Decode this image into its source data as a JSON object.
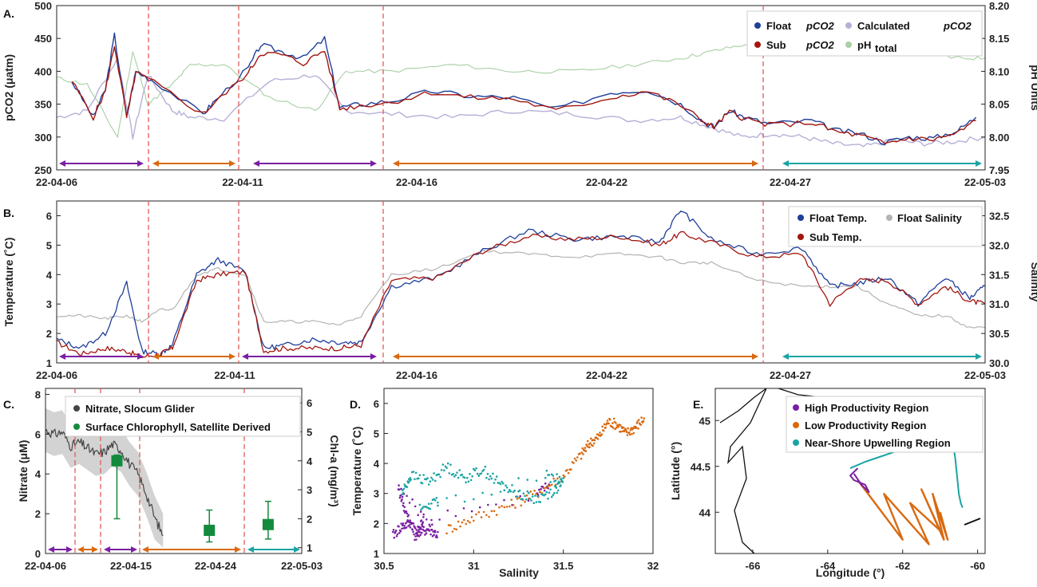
{
  "colors": {
    "float": "#1f3f99",
    "sub": "#a3160f",
    "calculated": "#b6b0d6",
    "ph": "#a9cfa5",
    "salinity": "#b3b3b3",
    "high": "#7a1fa2",
    "low": "#d9690f",
    "nearshore": "#1aa3a3",
    "nitrate": "#444444",
    "chl": "#138a3c",
    "divider": "#e05a5a"
  },
  "chart_data": [
    {
      "panel": "A.",
      "type": "line",
      "ylabel": "pCO2 (μatm)",
      "y2label": "pH Units",
      "ylim": [
        250,
        500
      ],
      "y2lim": [
        7.95,
        8.2
      ],
      "yticks": [
        "250",
        "300",
        "350",
        "400",
        "450",
        "500"
      ],
      "y2ticks": [
        "7.95",
        "8.00",
        "8.05",
        "8.10",
        "8.15",
        "8.20"
      ],
      "xticks": [
        "22-04-06",
        "22-04-11",
        "22-04-16",
        "22-04-22",
        "22-04-27",
        "22-05-03"
      ],
      "legend": {
        "float": "Float",
        "sub": "Sub",
        "pco2": "pCO",
        "pco2_sub": "2",
        "calc": "Calculated",
        "ph": "pH",
        "ph_sub": "total"
      },
      "series": [
        {
          "name": "Float pCO2",
          "x": [
            0.5,
            1.2,
            1.6,
            1.9,
            2.3,
            2.6,
            3.2,
            4.8,
            5.2,
            6.3,
            6.7,
            7.4,
            8.1,
            8.8,
            9.3,
            10.0,
            11.0,
            12.3,
            13.6,
            15.0,
            16.4,
            18.2,
            19.4,
            20.5,
            21.3,
            21.6,
            22.1,
            22.6,
            23.4,
            24.8,
            25.6,
            26.4,
            27.2,
            28.0,
            28.8,
            29.6,
            30.2
          ],
          "y": [
            385,
            330,
            372,
            455,
            330,
            400,
            385,
            335,
            355,
            405,
            440,
            430,
            420,
            450,
            345,
            350,
            355,
            370,
            362,
            360,
            342,
            368,
            372,
            350,
            322,
            315,
            340,
            330,
            320,
            325,
            310,
            305,
            292,
            300,
            298,
            310,
            330
          ]
        },
        {
          "name": "Sub pCO2",
          "x": [
            0.5,
            1.2,
            1.6,
            1.9,
            2.3,
            2.6,
            3.2,
            4.8,
            5.2,
            6.3,
            6.7,
            7.4,
            8.1,
            8.8,
            9.3,
            10.0,
            11.0,
            12.3,
            13.6,
            15.0,
            16.4,
            18.2,
            19.4,
            20.5,
            21.3,
            21.6,
            22.1,
            22.6,
            23.4,
            24.8,
            25.6,
            26.4,
            27.2,
            28.0,
            28.8,
            29.6,
            30.2
          ],
          "y": [
            385,
            330,
            370,
            440,
            330,
            398,
            383,
            335,
            352,
            398,
            428,
            425,
            412,
            432,
            343,
            348,
            353,
            368,
            360,
            358,
            340,
            360,
            370,
            348,
            322,
            315,
            338,
            328,
            318,
            322,
            308,
            302,
            290,
            298,
            296,
            306,
            325
          ]
        },
        {
          "name": "Calculated pCO2",
          "x": [
            0,
            1,
            2,
            2.5,
            3,
            3.8,
            4.4,
            5.5,
            7,
            8.5,
            9.5,
            11,
            13,
            15,
            17,
            19,
            20.5,
            21.5,
            22.5,
            23.5,
            24.5,
            25.5,
            26.5,
            27.5,
            28.5,
            29.5,
            30.5
          ],
          "y": [
            330,
            340,
            420,
            300,
            395,
            340,
            330,
            328,
            385,
            395,
            340,
            335,
            330,
            340,
            335,
            325,
            330,
            315,
            300,
            305,
            300,
            290,
            285,
            295,
            290,
            293,
            300
          ]
        },
        {
          "name": "pHtotal",
          "x": [
            0,
            1,
            2,
            2.5,
            3,
            3.8,
            4.4,
            5.5,
            7,
            8.5,
            9.5,
            11,
            13,
            15,
            17,
            19,
            20.5,
            21.5,
            22.5,
            23.5,
            24.5,
            25.5,
            26.5,
            27.5,
            28.5,
            29.5,
            30.5
          ],
          "y": [
            8.09,
            8.08,
            8.0,
            8.13,
            8.05,
            8.08,
            8.11,
            8.11,
            8.06,
            8.04,
            8.1,
            8.1,
            8.11,
            8.1,
            8.1,
            8.11,
            8.12,
            8.13,
            8.14,
            8.13,
            8.13,
            8.14,
            8.14,
            8.13,
            8.13,
            8.12,
            8.12
          ]
        }
      ]
    },
    {
      "panel": "B.",
      "type": "line",
      "ylabel": "Temperature (˚C)",
      "y2label": "Salinity",
      "ylim": [
        1,
        6.5
      ],
      "y2lim": [
        30,
        32.75
      ],
      "yticks": [
        "1",
        "2",
        "3",
        "4",
        "5",
        "6"
      ],
      "y2ticks": [
        "30.0",
        "30.5",
        "31.0",
        "31.5",
        "32.0",
        "32.5"
      ],
      "xticks": [
        "22-04-06",
        "22-04-11",
        "22-04-16",
        "22-04-22",
        "22-04-27",
        "22-05-03"
      ],
      "legend": {
        "float": "Float Temp.",
        "salinity": "Float Salinity",
        "sub": "Sub Temp."
      },
      "series": [
        {
          "name": "Float Temp.",
          "x": [
            0,
            0.8,
            1.6,
            2.3,
            2.8,
            3.4,
            3.8,
            4.6,
            5.3,
            6.2,
            6.8,
            7.5,
            8.4,
            9.3,
            10.0,
            11.0,
            12.5,
            14.0,
            15.5,
            17.0,
            18.5,
            19.8,
            20.5,
            21.5,
            23.0,
            24.5,
            25.4,
            26.3,
            27.3,
            28.3,
            29.2,
            30.0,
            30.5
          ],
          "y": [
            1.8,
            1.5,
            2.0,
            3.7,
            1.4,
            1.3,
            1.6,
            4.0,
            4.5,
            4.1,
            1.5,
            1.6,
            1.8,
            1.7,
            1.7,
            3.6,
            3.9,
            4.8,
            5.5,
            5.2,
            5.3,
            5.1,
            6.2,
            5.2,
            4.7,
            4.9,
            3.6,
            3.7,
            3.9,
            3.0,
            3.9,
            3.2,
            3.6
          ]
        },
        {
          "name": "Sub Temp.",
          "x": [
            0,
            0.8,
            1.6,
            2.3,
            2.8,
            3.4,
            3.8,
            4.6,
            5.3,
            6.2,
            6.8,
            7.5,
            8.4,
            9.3,
            10.0,
            11.0,
            12.5,
            14.0,
            15.5,
            17.0,
            18.5,
            19.8,
            20.5,
            21.5,
            23.0,
            24.5,
            25.4,
            26.3,
            27.3,
            28.3,
            29.2,
            30.0,
            30.5
          ],
          "y": [
            1.7,
            1.3,
            1.5,
            1.4,
            1.2,
            1.3,
            1.5,
            3.8,
            4.0,
            4.1,
            1.4,
            1.5,
            1.5,
            1.5,
            1.6,
            3.8,
            3.9,
            4.8,
            5.3,
            5.2,
            5.3,
            5.0,
            5.4,
            5.1,
            4.6,
            4.7,
            3.0,
            3.8,
            3.8,
            3.0,
            3.6,
            3.1,
            3.0
          ]
        },
        {
          "name": "Float Salinity",
          "x": [
            0,
            0.8,
            1.6,
            2.3,
            2.8,
            3.4,
            3.8,
            4.6,
            5.3,
            6.2,
            6.8,
            7.5,
            8.4,
            9.3,
            10.0,
            11.0,
            12.5,
            14.0,
            15.5,
            17.0,
            18.5,
            19.8,
            20.5,
            21.5,
            23.0,
            24.5,
            25.4,
            26.3,
            27.3,
            28.3,
            29.2,
            30.0,
            30.5
          ],
          "y": [
            30.8,
            30.8,
            30.75,
            30.8,
            30.7,
            30.9,
            30.9,
            31.5,
            31.6,
            31.5,
            30.7,
            30.7,
            30.7,
            30.65,
            30.8,
            31.5,
            31.6,
            31.9,
            31.85,
            31.8,
            31.85,
            31.8,
            31.7,
            31.7,
            31.4,
            31.3,
            31.3,
            31.3,
            31.0,
            30.8,
            30.8,
            30.6,
            30.6
          ]
        }
      ]
    },
    {
      "panel": "C.",
      "type": "line",
      "ylabel": "Nitrate (μM)",
      "y2label": "Chl-a (mg/m³)",
      "ylim": [
        0,
        8.3
      ],
      "y2lim": [
        0.8,
        6.5
      ],
      "yticks": [
        "0",
        "2",
        "4",
        "6",
        "8"
      ],
      "y2ticks": [
        "1",
        "2",
        "3",
        "4",
        "5",
        "6"
      ],
      "xticks": [
        "22-04-06",
        "22-04-15",
        "22-04-24",
        "22-05-03"
      ],
      "legend": {
        "nitrate": "Nitrate, Slocum Glider",
        "chl": "Surface Chlorophyll, Satellite Derived"
      },
      "series": [
        {
          "name": "Nitrate, Slocum Glider",
          "x": [
            0,
            1,
            2,
            3,
            4,
            5,
            6,
            7,
            8,
            9,
            10,
            11,
            12,
            13,
            14
          ],
          "y": [
            6.2,
            6.0,
            6.1,
            5.4,
            5.6,
            5.3,
            5.0,
            5.1,
            5.5,
            5.2,
            4.5,
            4.0,
            3.0,
            1.8,
            0.9
          ]
        },
        {
          "name": "Surface Chlorophyll, Satellite Derived",
          "x": [
            8.5,
            19.5,
            26.5
          ],
          "y": [
            4.0,
            1.6,
            1.8
          ],
          "err_low": [
            2.0,
            1.2,
            1.3
          ],
          "err_high": [
            4.2,
            2.3,
            2.6
          ]
        }
      ]
    },
    {
      "panel": "D.",
      "type": "scatter",
      "xlabel": "Salinity",
      "ylabel": "Temperature (˚C)",
      "xlim": [
        30.5,
        32
      ],
      "ylim": [
        1,
        6.5
      ],
      "xticks": [
        "30.5",
        "31",
        "31.5",
        "32"
      ],
      "yticks": [
        "1",
        "2",
        "3",
        "4",
        "5",
        "6"
      ],
      "series": [
        {
          "name": "High Productivity Region",
          "x": [
            30.55,
            30.6,
            30.65,
            30.7,
            30.75,
            30.8,
            30.58,
            30.62,
            30.68,
            30.72,
            31.35,
            31.42
          ],
          "y": [
            1.6,
            1.9,
            2.0,
            1.7,
            1.8,
            1.6,
            3.2,
            2.4,
            1.5,
            2.2,
            2.9,
            3.3
          ]
        },
        {
          "name": "Low Productivity Region",
          "x": [
            30.85,
            31.0,
            31.2,
            31.35,
            31.5,
            31.6,
            31.65,
            31.7,
            31.75,
            31.8,
            31.85,
            31.9,
            31.95
          ],
          "y": [
            1.8,
            2.2,
            2.6,
            3.0,
            3.6,
            4.3,
            4.7,
            4.9,
            5.4,
            5.3,
            5.0,
            5.2,
            5.5
          ]
        },
        {
          "name": "Near-Shore Upwelling Region",
          "x": [
            30.6,
            30.65,
            30.75,
            30.85,
            30.95,
            31.05,
            31.15,
            31.25,
            31.35,
            31.45,
            31.5,
            31.4,
            30.7,
            30.8
          ],
          "y": [
            3.0,
            3.6,
            3.4,
            3.9,
            3.5,
            3.8,
            3.3,
            3.0,
            2.8,
            3.1,
            3.4,
            3.6,
            2.5,
            2.7
          ]
        }
      ]
    },
    {
      "panel": "E.",
      "type": "line",
      "xlabel": "Longitude (°)",
      "ylabel": "Latitude (°)",
      "xlim": [
        -67,
        -59.8
      ],
      "ylim": [
        43.55,
        45.35
      ],
      "xticks": [
        "-66",
        "-64",
        "-62",
        "-60"
      ],
      "yticks": [
        "44",
        "44.5",
        "45"
      ],
      "legend": {
        "high": "High Productivity Region",
        "low": "Low Productivity Region",
        "near": "Near-Shore Upwelling Region"
      },
      "series": [
        {
          "name": "High Productivity Region",
          "x": [
            -63.2,
            -63.4,
            -63.3,
            -63.0,
            -62.9,
            -63.1,
            -63.3
          ],
          "y": [
            44.48,
            44.4,
            44.35,
            44.3,
            44.22,
            44.3,
            44.42
          ]
        },
        {
          "name": "Low Productivity Region",
          "x": [
            -63.2,
            -62.0,
            -62.5,
            -61.3,
            -61.8,
            -61.0,
            -61.5,
            -60.9,
            -61.2,
            -60.8,
            -61.0
          ],
          "y": [
            44.35,
            43.7,
            44.2,
            43.65,
            44.1,
            43.8,
            44.25,
            43.7,
            44.2,
            43.7,
            44.0
          ]
        },
        {
          "name": "Near-Shore Upwelling Region",
          "x": [
            -63.4,
            -63.0,
            -61.2,
            -60.8,
            -60.7,
            -60.6,
            -60.55,
            -60.5,
            -60.45,
            -60.4
          ],
          "y": [
            44.48,
            44.55,
            44.8,
            44.95,
            44.85,
            44.6,
            44.4,
            44.2,
            44.1,
            44.05
          ]
        }
      ]
    }
  ]
}
